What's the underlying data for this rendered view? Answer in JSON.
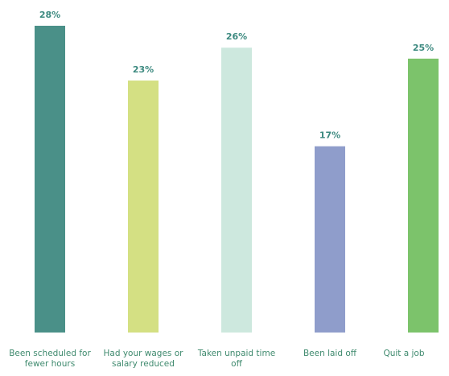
{
  "chart_data": {
    "type": "bar",
    "categories": [
      "Been scheduled for fewer hours",
      "Had your wages or salary reduced",
      "Taken unpaid time off",
      "Been laid off",
      "Quit a job"
    ],
    "values": [
      28,
      23,
      26,
      17,
      25
    ],
    "value_labels": [
      "28%",
      "23%",
      "26%",
      "17%",
      "25%"
    ],
    "colors": [
      "#4a9088",
      "#d4e083",
      "#cde8de",
      "#8f9dcb",
      "#7cc36b"
    ]
  }
}
